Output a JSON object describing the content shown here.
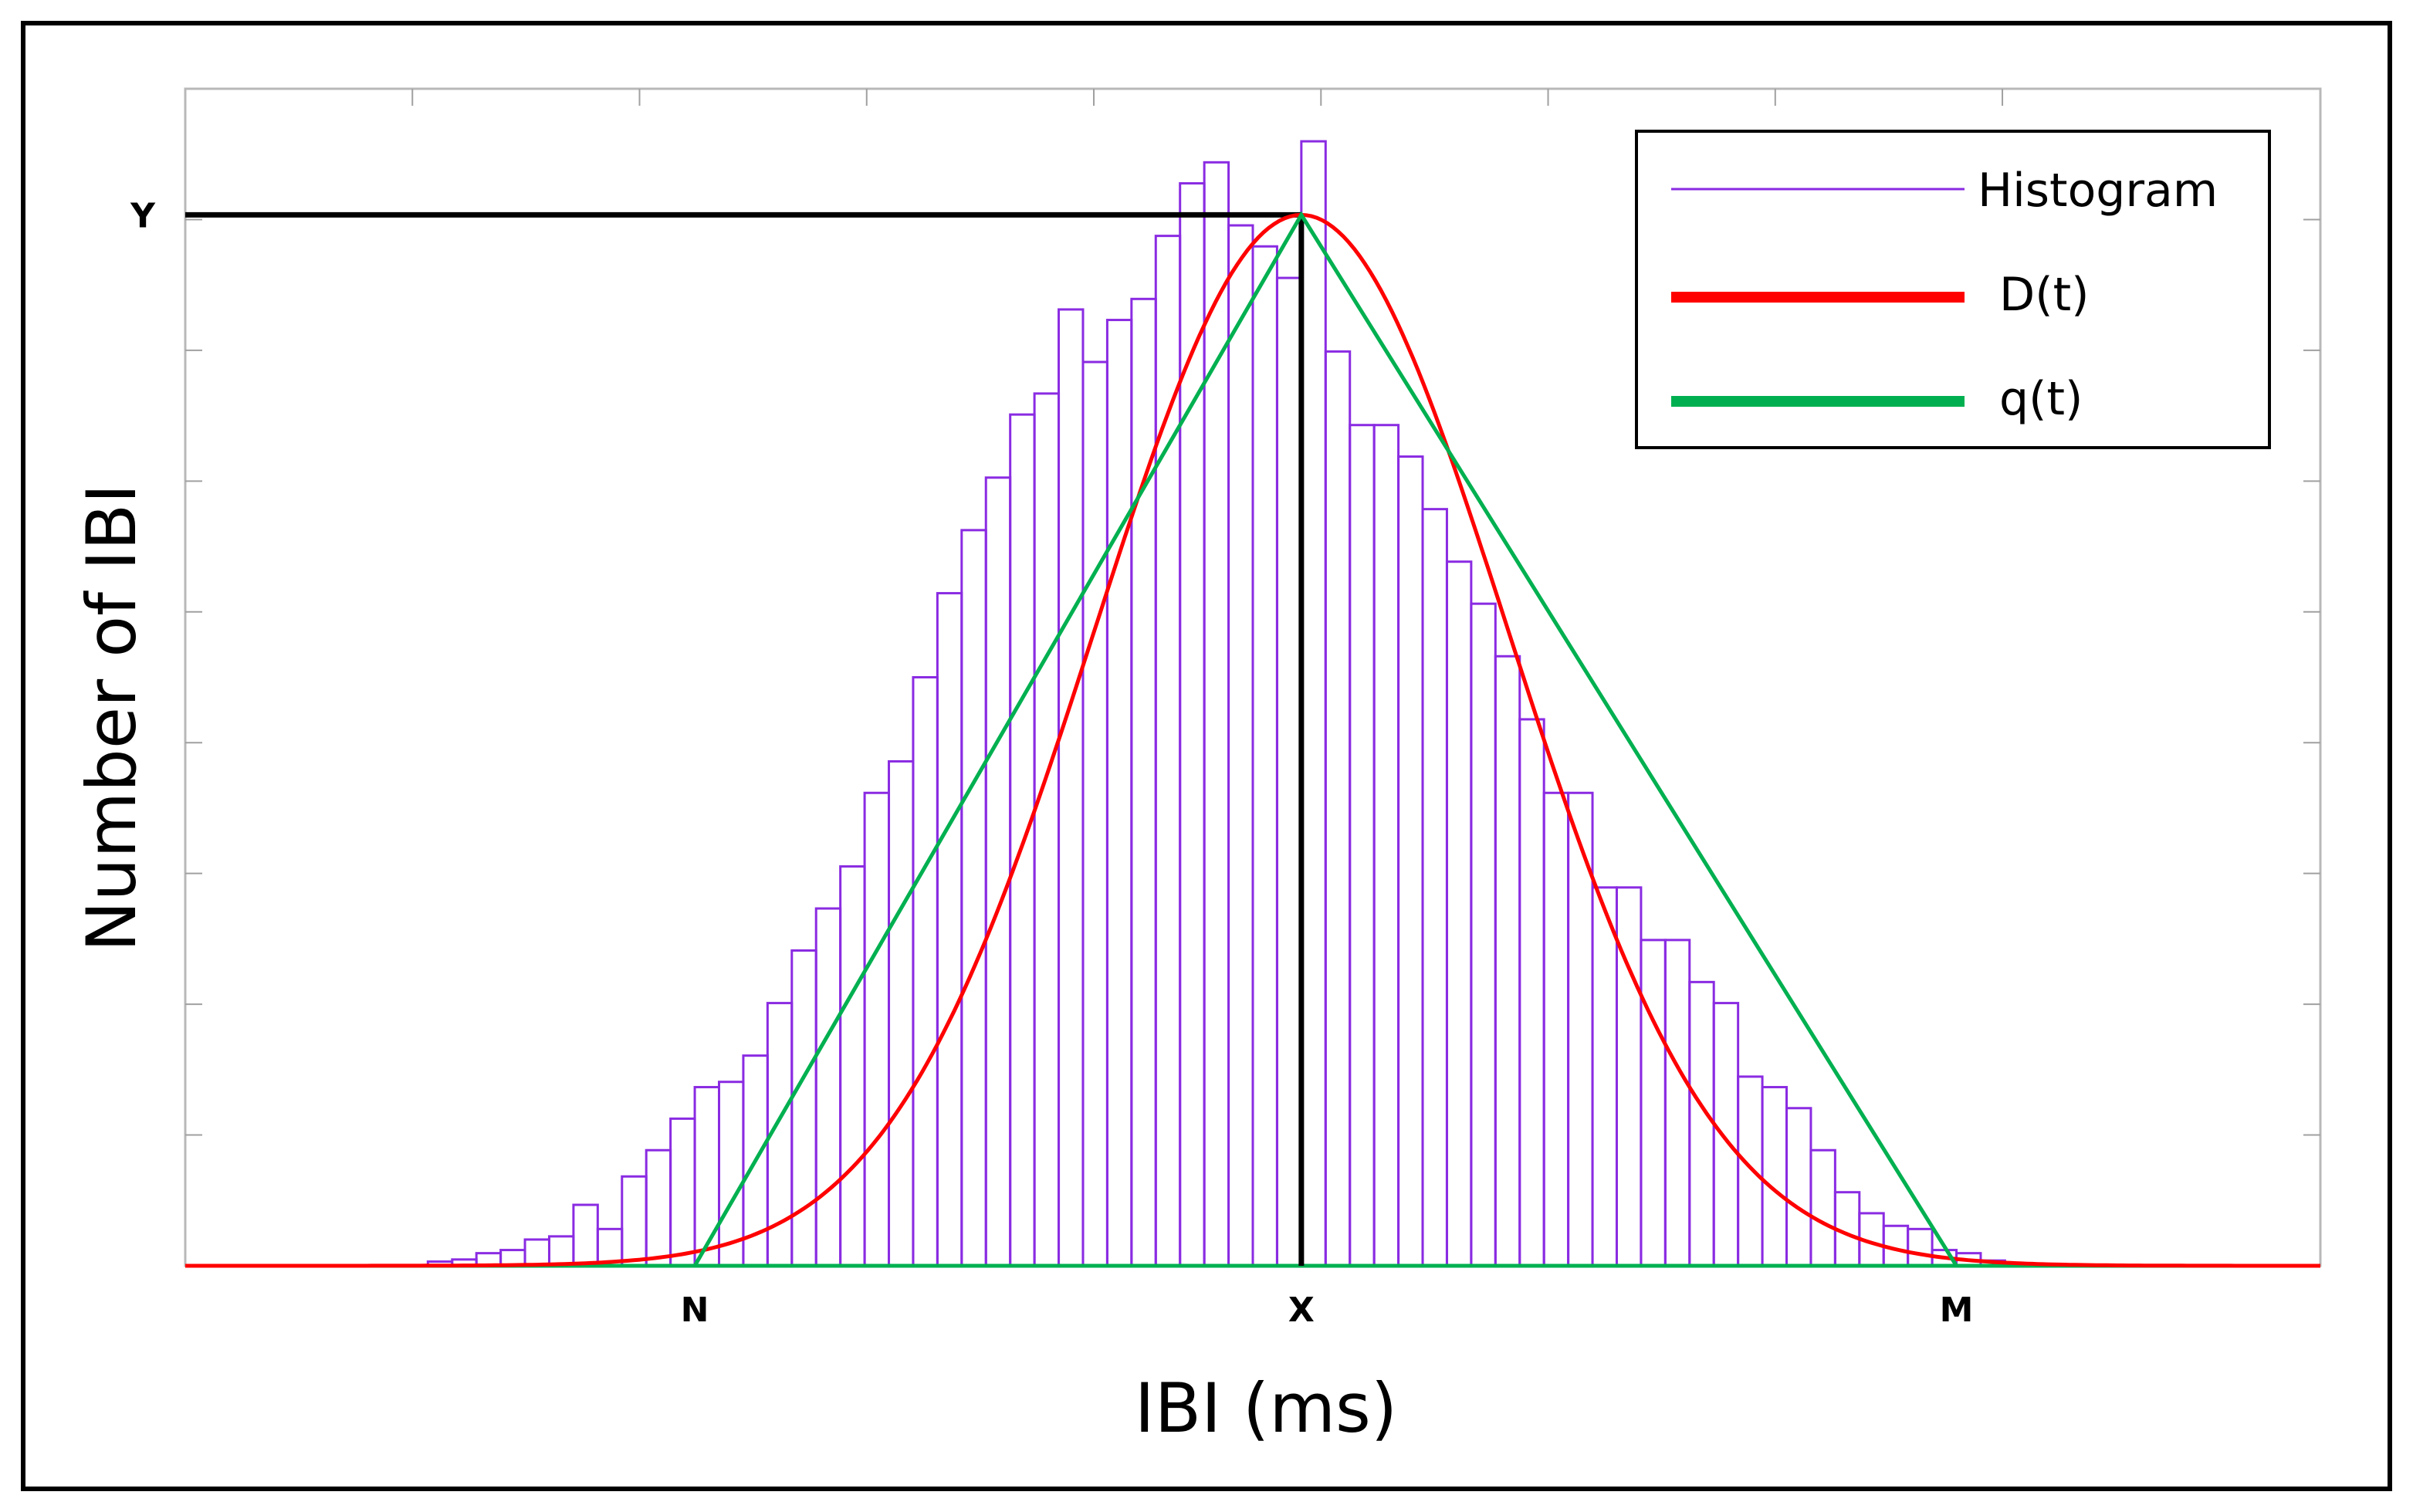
{
  "chart_data": {
    "type": "bar",
    "title": "",
    "xlabel": "IBI (ms)",
    "ylabel": "Number of IBI",
    "x_marks": [
      {
        "label": "N",
        "x": 21
      },
      {
        "label": "X",
        "x": 46
      },
      {
        "label": "M",
        "x": 73
      }
    ],
    "y_marks": [
      {
        "label": "Y",
        "y": 100
      }
    ],
    "xlim": [
      0,
      88
    ],
    "ylim": [
      0,
      112
    ],
    "grid": false,
    "legend": {
      "placement": "top-right",
      "entries": [
        {
          "label": "Histogram",
          "color": "#8a2be2",
          "style": "bars"
        },
        {
          "label": "D(t)",
          "color": "#ff0000",
          "style": "line"
        },
        {
          "label": "q(t)",
          "color": "#00b050",
          "style": "line"
        }
      ]
    },
    "histogram": {
      "bin_start": 10,
      "bin_width": 1,
      "color": "#8a2be2",
      "values": [
        0.4,
        0.6,
        1.2,
        1.5,
        2.5,
        2.8,
        5.8,
        3.5,
        8.5,
        11,
        14,
        17,
        17.5,
        20,
        25,
        30,
        34,
        38,
        45,
        48,
        56,
        64,
        70,
        75,
        81,
        83,
        91,
        86,
        90,
        92,
        98,
        103,
        105,
        99,
        97,
        94,
        107,
        87,
        80,
        80,
        77,
        72,
        67,
        63,
        58,
        52,
        45,
        45,
        36,
        36,
        31,
        31,
        27,
        25,
        18,
        17,
        15,
        11,
        7,
        5,
        3.8,
        3.5,
        1.5,
        1.2,
        0.5
      ]
    },
    "series": [
      {
        "name": "D(t)",
        "color": "#ff0000",
        "kind": "gaussian",
        "mean": 46,
        "sd": 8.5,
        "peak": 100
      },
      {
        "name": "q(t)",
        "color": "#00b050",
        "kind": "triangle",
        "points": [
          [
            21,
            0
          ],
          [
            46,
            100
          ],
          [
            73,
            0
          ]
        ]
      }
    ],
    "reference_lines": [
      {
        "from": [
          0,
          100
        ],
        "to": [
          46,
          100
        ],
        "color": "#000000"
      },
      {
        "from": [
          46,
          0
        ],
        "to": [
          46,
          100
        ],
        "color": "#000000"
      }
    ],
    "baseline": {
      "from": [
        0,
        0
      ],
      "to": [
        88,
        0
      ],
      "color": "#00b050"
    }
  }
}
